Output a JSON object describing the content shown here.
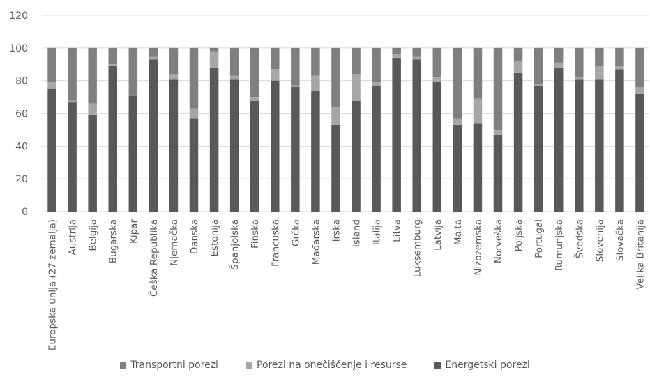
{
  "chart_data": {
    "type": "bar",
    "stacked": true,
    "title": "",
    "xlabel": "",
    "ylabel": "",
    "ylim": [
      0,
      120
    ],
    "yticks": [
      0,
      20,
      40,
      60,
      80,
      100,
      120
    ],
    "grid": true,
    "legend_position": "bottom",
    "categories": [
      "Europska unija (27 zemalja)",
      "Austrija",
      "Belgija",
      "Bugarska",
      "Kipar",
      "Češka Republika",
      "Njemačka",
      "Danska",
      "Estonija",
      "Španjolska",
      "Finska",
      "Francuska",
      "Grčka",
      "Mađarska",
      "Irska",
      "Island",
      "Italija",
      "Litva",
      "Luksemburg",
      "Latvija",
      "Malta",
      "Nizozemska",
      "Norveška",
      "Poljska",
      "Portugal",
      "Rumunjska",
      "Švedska",
      "Slovenija",
      "Slovačka",
      "Velika Britanija"
    ],
    "series": [
      {
        "name": "Energetski porezi",
        "color": "#595959",
        "values": [
          75,
          67,
          59,
          89,
          71,
          93,
          81,
          57,
          88,
          81,
          68,
          80,
          76,
          74,
          53,
          68,
          77,
          94,
          93,
          79,
          53,
          54,
          47,
          85,
          77,
          88,
          81,
          81,
          87,
          72
        ]
      },
      {
        "name": "Porezi na onečišćenje i resurse",
        "color": "#a6a6a6",
        "values": [
          4,
          1,
          7,
          1,
          0,
          2,
          3,
          6,
          10,
          2,
          2,
          7,
          1,
          9,
          11,
          16,
          2,
          2,
          2,
          3,
          4,
          15,
          3,
          7,
          1,
          3,
          1,
          8,
          2,
          4
        ]
      },
      {
        "name": "Transportni porezi",
        "color": "#7f7f7f",
        "values": [
          21,
          32,
          34,
          10,
          29,
          5,
          16,
          37,
          2,
          17,
          30,
          13,
          23,
          17,
          36,
          16,
          21,
          4,
          5,
          18,
          43,
          31,
          50,
          8,
          22,
          9,
          18,
          11,
          11,
          24
        ]
      }
    ],
    "legend_order": [
      "Transportni porezi",
      "Porezi na onečišćenje i resurse",
      "Energetski porezi"
    ]
  }
}
